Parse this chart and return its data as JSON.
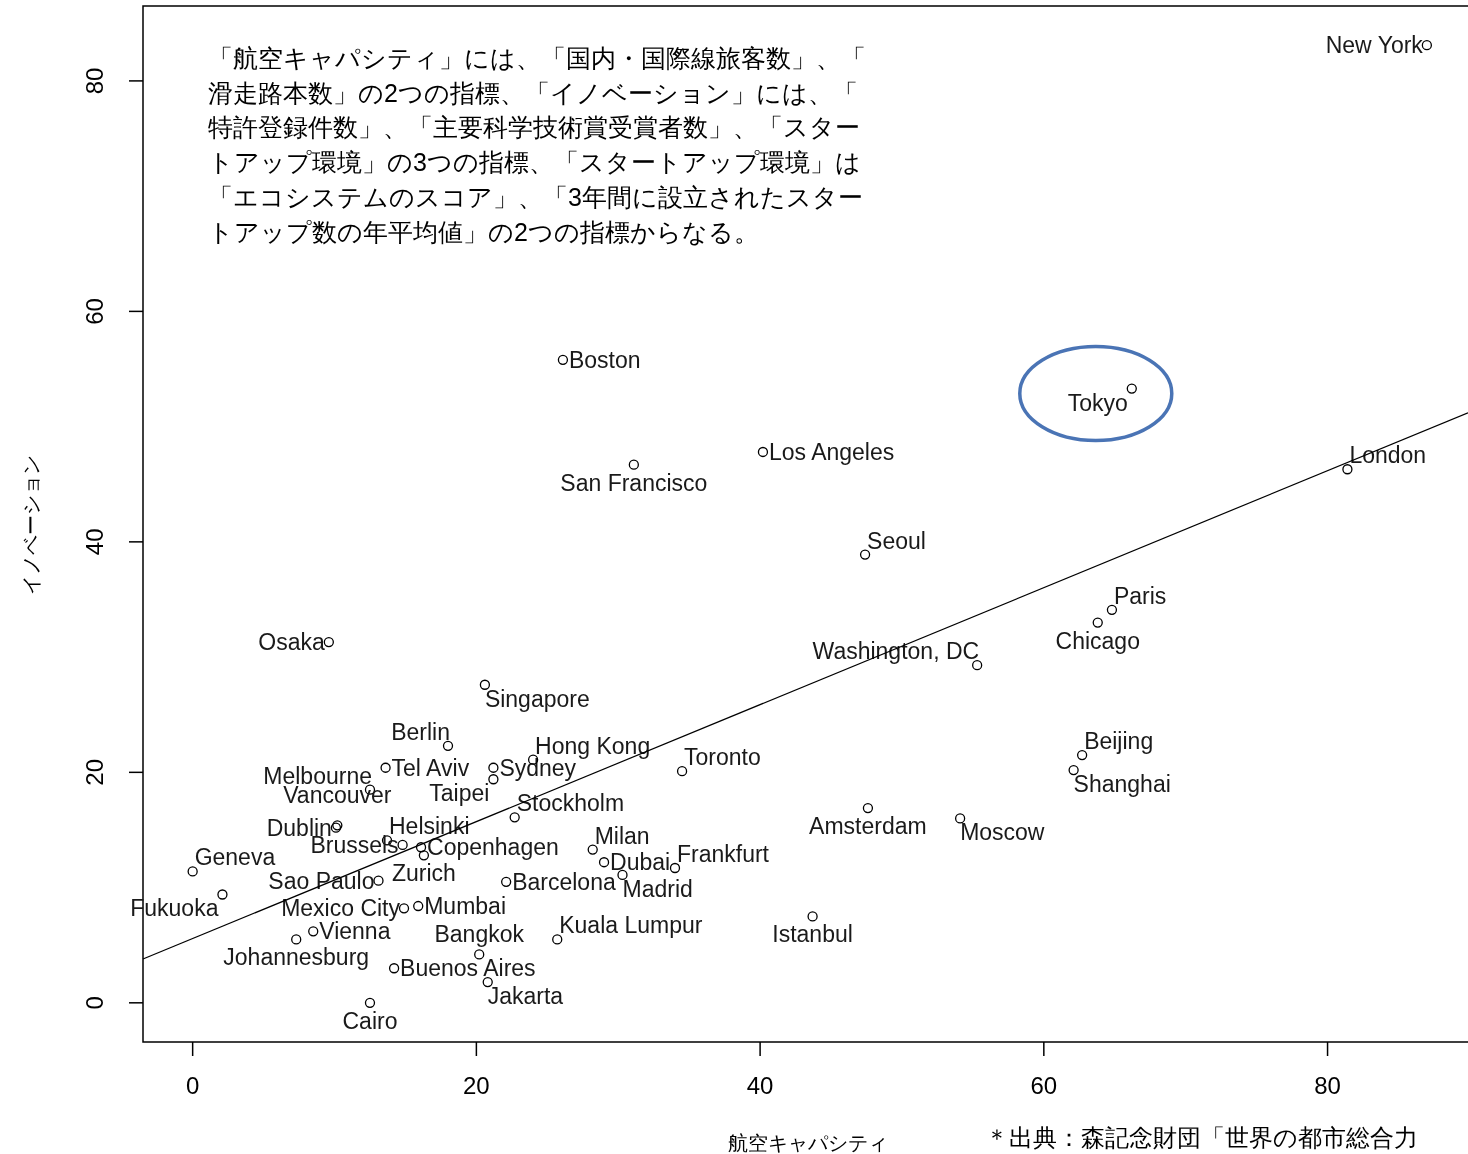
{
  "chart_data": {
    "type": "scatter",
    "xlabel": "航空キャパシティ",
    "ylabel": "イノベーション",
    "xlim": [
      -3.5,
      89.9
    ],
    "ylim": [
      -3.4,
      86.5
    ],
    "xticks": [
      0,
      20,
      40,
      60,
      80
    ],
    "yticks": [
      0,
      20,
      40,
      60,
      80
    ],
    "annotations": [
      "「航空キャパシティ」には、「国内・国際線旅客数」、「滑走路本数」の2つの指標、「イノベーション」には、「特許登録件数」、「主要科学技術賞受賞者数」、「スタートアップ環境」の3つの指標、「スタートアップ環境」は「エコシステムのスコア」、「3年間に設立されたスタートアップ数の年平均値」の2つの指標からなる。",
      "＊出典：森記念財団「世界の都市総合力"
    ],
    "series": [
      {
        "type": "scatter",
        "marker": "circle",
        "color": "#000000",
        "x": [
          87.0,
          81.4,
          66.2,
          64.8,
          63.8,
          47.4,
          55.3,
          40.2,
          31.1,
          26.1,
          9.6,
          20.6,
          18.0,
          13.6,
          12.5,
          21.2,
          21.2,
          24.0,
          22.7,
          34.5,
          62.7,
          62.1,
          47.6,
          54.1,
          43.7,
          10.1,
          10.2,
          13.7,
          14.8,
          16.1,
          16.3,
          0.0,
          13.1,
          2.1,
          14.9,
          15.9,
          8.5,
          7.3,
          14.2,
          20.2,
          20.8,
          12.5,
          25.7,
          22.1,
          28.2,
          29.0,
          30.3,
          34.0
        ],
        "values": [
          83.1,
          46.3,
          53.3,
          34.1,
          33.0,
          38.9,
          29.3,
          47.8,
          46.7,
          55.8,
          31.3,
          27.6,
          22.3,
          20.4,
          18.5,
          20.4,
          19.4,
          21.1,
          16.1,
          20.1,
          21.5,
          20.2,
          16.9,
          16.0,
          7.5,
          15.2,
          15.4,
          14.1,
          13.7,
          13.5,
          12.8,
          11.4,
          10.6,
          9.4,
          8.2,
          8.4,
          6.2,
          5.5,
          3.0,
          4.2,
          1.8,
          0.0,
          5.5,
          10.5,
          13.3,
          12.2,
          11.1,
          11.7
        ],
        "value_labels": [
          "New York",
          "London",
          "Tokyo",
          "Paris",
          "Chicago",
          "Seoul",
          "Washington, DC",
          "Los Angeles",
          "San Francisco",
          "Boston",
          "Osaka",
          "Singapore",
          "Berlin",
          "Tel Aviv",
          "Melbourne",
          "Sydney",
          "Taipei",
          "Hong Kong",
          "Stockholm",
          "Toronto",
          "Beijing",
          "Shanghai",
          "Amsterdam",
          "Moscow",
          "Istanbul",
          "Dublin",
          "Vancouver",
          "Helsinki",
          "Brussels",
          "Copenhagen",
          "Zurich",
          "Geneva",
          "Sao Paulo",
          "Fukuoka",
          "Mexico City",
          "Mumbai",
          "Vienna",
          "Johannesburg",
          "Buenos Aires",
          "Bangkok",
          "Jakarta",
          "Cairo",
          "Kuala Lumpur",
          "Barcelona",
          "Milan",
          "Dubai",
          "Madrid",
          "Frankfurt"
        ]
      },
      {
        "type": "line",
        "color": "#000000",
        "x": [
          -3.5,
          89.9
        ],
        "values": [
          3.8,
          51.2
        ]
      }
    ]
  }
}
